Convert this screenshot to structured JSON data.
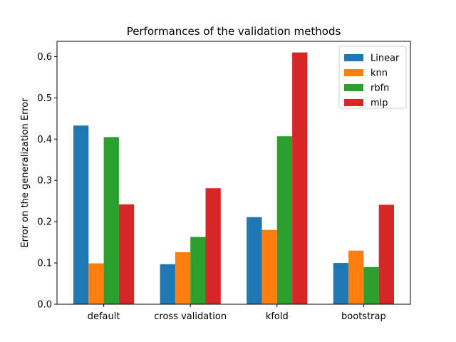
{
  "chart_data": {
    "type": "bar",
    "title": "Performances of the validation methods",
    "xlabel": "",
    "ylabel": "Error on the generalization Error",
    "categories": [
      "default",
      "cross validation",
      "kfold",
      "bootstrap"
    ],
    "series": [
      {
        "name": "Linear",
        "color": "#1f77b4",
        "values": [
          0.433,
          0.097,
          0.211,
          0.1
        ]
      },
      {
        "name": "knn",
        "color": "#ff7f0e",
        "values": [
          0.099,
          0.126,
          0.18,
          0.13
        ]
      },
      {
        "name": "rbfn",
        "color": "#2ca02c",
        "values": [
          0.405,
          0.163,
          0.407,
          0.09
        ]
      },
      {
        "name": "mlp",
        "color": "#d62728",
        "values": [
          0.242,
          0.281,
          0.61,
          0.241
        ]
      }
    ],
    "ylim": [
      0,
      0.637
    ],
    "yticks": [
      "0.0",
      "0.1",
      "0.2",
      "0.3",
      "0.4",
      "0.5",
      "0.6"
    ],
    "grid": false,
    "legend_position": "top-right"
  }
}
